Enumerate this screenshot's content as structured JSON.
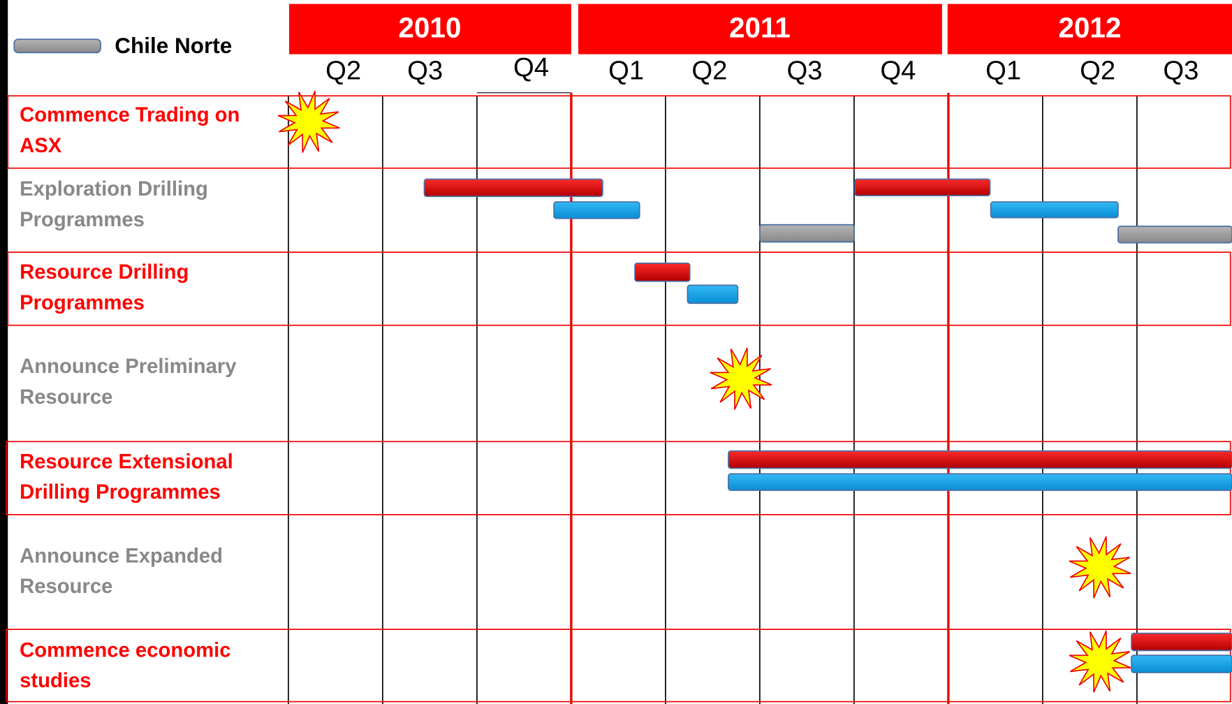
{
  "legend": "Chile Norte",
  "years": [
    "2010",
    "2011",
    "2012"
  ],
  "quarters": [
    "Q2",
    "Q3",
    "Q4",
    "Q1",
    "Q2",
    "Q3",
    "Q4",
    "Q1",
    "Q2",
    "Q3"
  ],
  "rows": [
    {
      "lines": [
        "Commence Trading on",
        "ASX"
      ]
    },
    {
      "lines": [
        "Exploration Drilling",
        "Programmes"
      ]
    },
    {
      "lines": [
        "Resource Drilling",
        "Programmes"
      ]
    },
    {
      "lines": [
        "Announce Preliminary",
        "Resource"
      ]
    },
    {
      "lines": [
        "Resource Extensional",
        "Drilling Programmes"
      ]
    },
    {
      "lines": [
        "Announce Expanded",
        "Resource"
      ]
    },
    {
      "lines": [
        "Commence economic",
        "studies"
      ]
    }
  ]
}
